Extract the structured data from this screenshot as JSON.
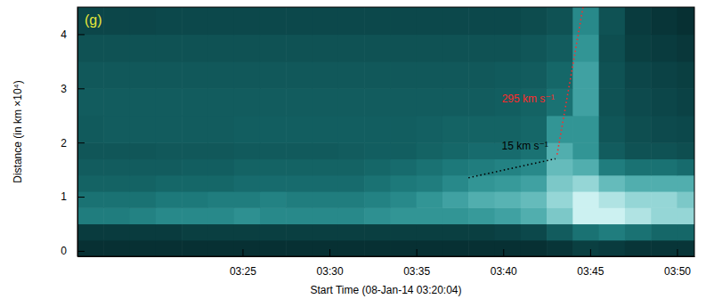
{
  "chart_data": {
    "type": "heatmap",
    "panel_label": "(g)",
    "xlabel": "Start Time (08-Jan-14 03:20:04)",
    "ylabel": "Distance (in km ×10⁴)",
    "xlim": [
      15.5,
      51.0
    ],
    "xticks": [
      {
        "value": 25,
        "label": "03:25"
      },
      {
        "value": 30,
        "label": "03:30"
      },
      {
        "value": 35,
        "label": "03:35"
      },
      {
        "value": 40,
        "label": "03:40"
      },
      {
        "value": 45,
        "label": "03:45"
      },
      {
        "value": 50,
        "label": "03:50"
      }
    ],
    "ylim": [
      -0.1,
      4.5
    ],
    "yticks": [
      0,
      1,
      2,
      3,
      4
    ],
    "x_edges": [
      15.5,
      17,
      18.5,
      20,
      21.5,
      23,
      24.5,
      26,
      27.5,
      29,
      30.5,
      32,
      33.5,
      35,
      36.5,
      38,
      39.5,
      41,
      42.5,
      44,
      45.5,
      47,
      48.5,
      50,
      51.5
    ],
    "y_edges": [
      -0.1,
      0.2,
      0.5,
      0.8,
      1.1,
      1.4,
      1.7,
      2.0,
      2.5,
      3.0,
      3.5,
      4.0,
      4.5
    ],
    "clim": [
      0,
      1
    ],
    "cells": [
      [
        0.12,
        0.12,
        0.12,
        0.12,
        0.12,
        0.12,
        0.12,
        0.12,
        0.12,
        0.12,
        0.12,
        0.12,
        0.12,
        0.12,
        0.12,
        0.12,
        0.12,
        0.12,
        0.15,
        0.2,
        0.18,
        0.15,
        0.15,
        0.15
      ],
      [
        0.18,
        0.18,
        0.18,
        0.18,
        0.2,
        0.2,
        0.2,
        0.2,
        0.2,
        0.2,
        0.2,
        0.2,
        0.2,
        0.2,
        0.2,
        0.2,
        0.22,
        0.25,
        0.35,
        0.45,
        0.5,
        0.45,
        0.4,
        0.4
      ],
      [
        0.5,
        0.5,
        0.52,
        0.55,
        0.55,
        0.55,
        0.58,
        0.55,
        0.55,
        0.55,
        0.55,
        0.58,
        0.6,
        0.6,
        0.6,
        0.62,
        0.65,
        0.7,
        0.8,
        0.95,
        0.95,
        0.9,
        0.85,
        0.85
      ],
      [
        0.45,
        0.45,
        0.45,
        0.48,
        0.48,
        0.5,
        0.5,
        0.52,
        0.5,
        0.5,
        0.5,
        0.52,
        0.55,
        0.6,
        0.65,
        0.7,
        0.72,
        0.75,
        0.85,
        0.95,
        0.9,
        0.85,
        0.85,
        0.8
      ],
      [
        0.38,
        0.38,
        0.38,
        0.4,
        0.4,
        0.4,
        0.42,
        0.42,
        0.42,
        0.42,
        0.42,
        0.45,
        0.48,
        0.5,
        0.55,
        0.6,
        0.62,
        0.65,
        0.8,
        0.85,
        0.75,
        0.7,
        0.7,
        0.7
      ],
      [
        0.35,
        0.35,
        0.35,
        0.35,
        0.36,
        0.36,
        0.38,
        0.38,
        0.38,
        0.38,
        0.38,
        0.4,
        0.42,
        0.45,
        0.48,
        0.5,
        0.52,
        0.55,
        0.75,
        0.7,
        0.5,
        0.45,
        0.45,
        0.42
      ],
      [
        0.32,
        0.32,
        0.32,
        0.33,
        0.33,
        0.33,
        0.34,
        0.34,
        0.34,
        0.34,
        0.35,
        0.36,
        0.36,
        0.38,
        0.4,
        0.42,
        0.42,
        0.45,
        0.7,
        0.6,
        0.35,
        0.3,
        0.3,
        0.28
      ],
      [
        0.34,
        0.35,
        0.35,
        0.35,
        0.35,
        0.35,
        0.36,
        0.36,
        0.36,
        0.36,
        0.36,
        0.36,
        0.36,
        0.37,
        0.38,
        0.38,
        0.38,
        0.4,
        0.6,
        0.6,
        0.32,
        0.28,
        0.26,
        0.25
      ],
      [
        0.35,
        0.35,
        0.35,
        0.35,
        0.35,
        0.35,
        0.35,
        0.35,
        0.35,
        0.35,
        0.35,
        0.35,
        0.35,
        0.35,
        0.35,
        0.35,
        0.36,
        0.38,
        0.45,
        0.65,
        0.3,
        0.26,
        0.24,
        0.22
      ],
      [
        0.33,
        0.33,
        0.33,
        0.33,
        0.33,
        0.33,
        0.33,
        0.33,
        0.33,
        0.33,
        0.33,
        0.33,
        0.33,
        0.33,
        0.33,
        0.33,
        0.34,
        0.35,
        0.4,
        0.65,
        0.3,
        0.24,
        0.22,
        0.2
      ],
      [
        0.3,
        0.3,
        0.3,
        0.3,
        0.3,
        0.3,
        0.3,
        0.3,
        0.3,
        0.3,
        0.3,
        0.3,
        0.3,
        0.3,
        0.3,
        0.3,
        0.3,
        0.32,
        0.35,
        0.6,
        0.28,
        0.2,
        0.18,
        0.16
      ],
      [
        0.24,
        0.24,
        0.24,
        0.25,
        0.25,
        0.25,
        0.25,
        0.25,
        0.25,
        0.25,
        0.25,
        0.25,
        0.25,
        0.25,
        0.25,
        0.25,
        0.25,
        0.27,
        0.3,
        0.55,
        0.3,
        0.18,
        0.15,
        0.12
      ]
    ],
    "annotations": [
      {
        "text": "295 km s⁻¹",
        "color": "#ff2a2a",
        "line_style": "dotted",
        "x": [
          43.1,
          44.7
        ],
        "y": [
          1.78,
          4.7
        ]
      },
      {
        "text": "15 km s⁻¹",
        "color": "#000000",
        "line_style": "dotted",
        "x": [
          38.0,
          43.0
        ],
        "y": [
          1.35,
          1.7
        ]
      }
    ]
  }
}
